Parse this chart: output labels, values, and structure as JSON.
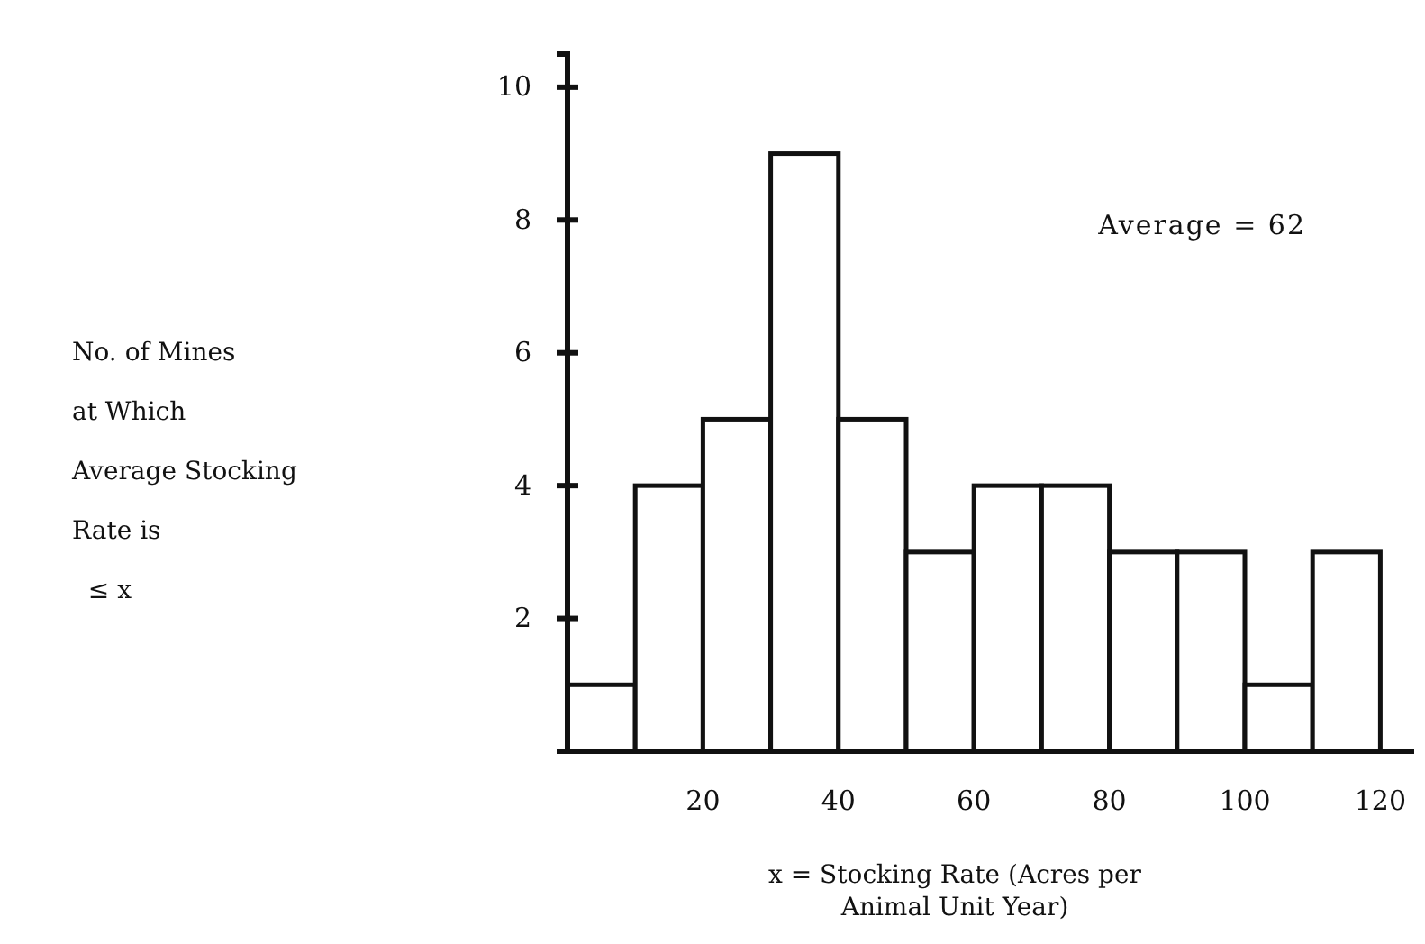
{
  "chart_data": {
    "type": "histogram",
    "bins": [
      0,
      10,
      20,
      30,
      40,
      50,
      60,
      70,
      80,
      90,
      100,
      110,
      120
    ],
    "values": [
      1,
      4,
      5,
      9,
      5,
      3,
      4,
      4,
      3,
      3,
      1,
      3
    ],
    "color": "#ffffff",
    "xlim": [
      0,
      125
    ],
    "xticks": [
      20,
      40,
      60,
      80,
      100,
      120
    ],
    "ylim": [
      0,
      10.5
    ],
    "yticks": [
      2,
      4,
      6,
      8,
      10
    ],
    "xlabel": "x = Stocking Rate (Acres per\nAnimal Unit Year)",
    "ylabel": "No. of Mines\nat Which\nAverage Stocking\nRate is\n  ≤ x",
    "annotations": [
      "Average = 62"
    ],
    "grid": false
  }
}
